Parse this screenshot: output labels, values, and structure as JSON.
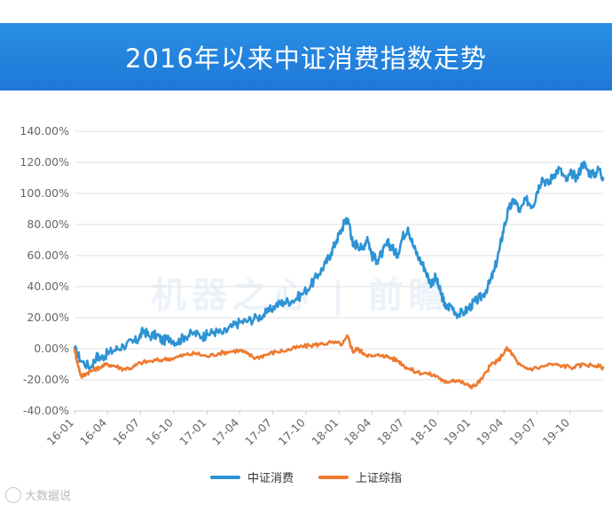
{
  "banner": {
    "title": "2016年以来中证消费指数走势"
  },
  "watermark": {
    "text": "机器之心 | 前瞻"
  },
  "source": {
    "text": "大数据说"
  },
  "colors": {
    "series1": "#2d93d4",
    "series2": "#ee7a2e",
    "grid": "#e2e2e2",
    "axis_text": "#666666"
  },
  "chart_data": {
    "type": "line",
    "title": "",
    "xlabel": "",
    "ylabel": "",
    "ylim": [
      -40,
      140
    ],
    "yticks": [
      "140.00%",
      "120.00%",
      "100.00%",
      "80.00%",
      "60.00%",
      "40.00%",
      "20.00%",
      "0.00%",
      "-20.00%",
      "-40.00%"
    ],
    "xticks": [
      "16-01",
      "16-04",
      "16-07",
      "16-10",
      "17-01",
      "17-04",
      "17-07",
      "17-10",
      "18-01",
      "18-04",
      "18-07",
      "18-10",
      "19-01",
      "19-04",
      "19-07",
      "19-10"
    ],
    "grid": true,
    "legend_position": "bottom",
    "series": [
      {
        "name": "中证消费",
        "color": "#2d93d4",
        "x": [
          "2016-01-01",
          "2016-01-20",
          "2016-02-15",
          "2016-03-01",
          "2016-03-15",
          "2016-04-01",
          "2016-04-20",
          "2016-05-15",
          "2016-06-10",
          "2016-06-25",
          "2016-07-10",
          "2016-07-25",
          "2016-08-15",
          "2016-09-01",
          "2016-09-20",
          "2016-10-10",
          "2016-11-01",
          "2016-11-25",
          "2016-12-20",
          "2017-01-01",
          "2017-01-20",
          "2017-02-15",
          "2017-03-10",
          "2017-04-01",
          "2017-04-25",
          "2017-05-20",
          "2017-06-15",
          "2017-07-10",
          "2017-08-01",
          "2017-08-25",
          "2017-09-20",
          "2017-10-15",
          "2017-11-05",
          "2017-11-25",
          "2017-12-10",
          "2017-12-25",
          "2018-01-10",
          "2018-01-20",
          "2018-01-30",
          "2018-02-08",
          "2018-02-20",
          "2018-03-05",
          "2018-03-20",
          "2018-04-01",
          "2018-04-15",
          "2018-05-01",
          "2018-05-15",
          "2018-05-28",
          "2018-06-10",
          "2018-06-25",
          "2018-07-10",
          "2018-07-25",
          "2018-08-10",
          "2018-08-25",
          "2018-09-10",
          "2018-09-25",
          "2018-10-05",
          "2018-10-15",
          "2018-10-22",
          "2018-11-05",
          "2018-11-25",
          "2018-12-15",
          "2019-01-01",
          "2019-01-15",
          "2019-02-01",
          "2019-02-20",
          "2019-03-05",
          "2019-03-20",
          "2019-04-01",
          "2019-04-15",
          "2019-05-01",
          "2019-05-15",
          "2019-06-01",
          "2019-06-20",
          "2019-07-01",
          "2019-07-15",
          "2019-08-01",
          "2019-08-15",
          "2019-09-01",
          "2019-09-20",
          "2019-10-05",
          "2019-10-20",
          "2019-11-05",
          "2019-11-20",
          "2019-12-05",
          "2019-12-20",
          "2019-12-31"
        ],
        "y": [
          0,
          -8,
          -12,
          -5,
          -6,
          -3,
          -1,
          2,
          4,
          6,
          12,
          8,
          9,
          5,
          7,
          4,
          8,
          10,
          8,
          9,
          11,
          10,
          14,
          17,
          18,
          20,
          23,
          28,
          30,
          31,
          35,
          41,
          48,
          55,
          62,
          70,
          78,
          84,
          80,
          66,
          68,
          64,
          72,
          60,
          57,
          62,
          68,
          65,
          60,
          72,
          78,
          66,
          58,
          52,
          42,
          46,
          38,
          32,
          26,
          28,
          22,
          24,
          28,
          31,
          34,
          42,
          50,
          64,
          78,
          90,
          96,
          88,
          96,
          92,
          101,
          110,
          106,
          112,
          116,
          108,
          113,
          110,
          120,
          114,
          112,
          116,
          110
        ]
      },
      {
        "name": "上证综指",
        "color": "#ee7a2e",
        "x": [
          "2016-01-01",
          "2016-01-10",
          "2016-01-20",
          "2016-02-01",
          "2016-02-20",
          "2016-03-10",
          "2016-04-01",
          "2016-04-20",
          "2016-05-15",
          "2016-06-10",
          "2016-07-01",
          "2016-08-01",
          "2016-09-01",
          "2016-10-01",
          "2016-11-01",
          "2016-12-01",
          "2017-01-01",
          "2017-02-01",
          "2017-03-01",
          "2017-04-01",
          "2017-04-20",
          "2017-05-15",
          "2017-06-10",
          "2017-07-10",
          "2017-08-10",
          "2017-09-10",
          "2017-10-10",
          "2017-11-10",
          "2017-12-10",
          "2018-01-10",
          "2018-01-25",
          "2018-02-08",
          "2018-02-20",
          "2018-03-10",
          "2018-04-01",
          "2018-05-01",
          "2018-05-25",
          "2018-06-15",
          "2018-07-05",
          "2018-08-01",
          "2018-09-01",
          "2018-10-01",
          "2018-10-20",
          "2018-11-10",
          "2018-12-01",
          "2018-12-25",
          "2019-01-10",
          "2019-02-01",
          "2019-02-25",
          "2019-03-15",
          "2019-04-08",
          "2019-04-20",
          "2019-05-10",
          "2019-06-10",
          "2019-07-10",
          "2019-08-10",
          "2019-09-10",
          "2019-10-10",
          "2019-11-10",
          "2019-12-10",
          "2019-12-31"
        ],
        "y": [
          0,
          -10,
          -18,
          -16,
          -14,
          -12,
          -10,
          -11,
          -13,
          -12,
          -9,
          -8,
          -7,
          -6,
          -4,
          -3,
          -5,
          -3,
          -2,
          -1,
          -3,
          -6,
          -4,
          -2,
          -1,
          1,
          2,
          3,
          4,
          3,
          8,
          -2,
          0,
          -3,
          -5,
          -4,
          -6,
          -8,
          -12,
          -15,
          -16,
          -18,
          -22,
          -20,
          -21,
          -24,
          -24,
          -19,
          -10,
          -8,
          0,
          -2,
          -10,
          -13,
          -12,
          -10,
          -11,
          -12,
          -10,
          -11,
          -12
        ]
      }
    ]
  }
}
